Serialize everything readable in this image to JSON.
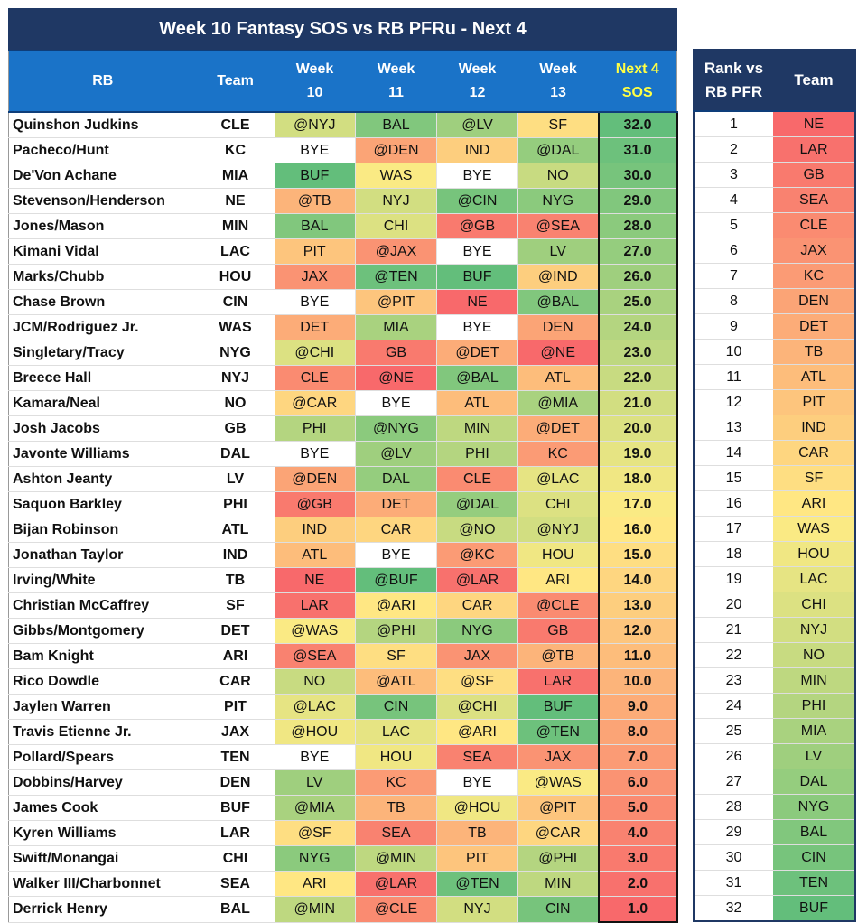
{
  "title": "Week 10 Fantasy SOS vs RB PFRu - Next 4",
  "headers": {
    "rb": "RB",
    "team": "Team",
    "weeks": [
      {
        "l1": "Week",
        "l2": "10"
      },
      {
        "l1": "Week",
        "l2": "11"
      },
      {
        "l1": "Week",
        "l2": "12"
      },
      {
        "l1": "Week",
        "l2": "13"
      }
    ],
    "sos": {
      "l1": "Next 4",
      "l2": "SOS"
    }
  },
  "side_headers": {
    "rank_l1": "Rank vs",
    "rank_l2": "RB PFR",
    "team": "Team"
  },
  "colors": {
    "title_bg": "#1f3864",
    "header_bg": "#1a73c8",
    "side_header_bg": "#1f3864",
    "sos_header_text": "#ffff44",
    "scale_bad": "#f8696b",
    "scale_mid": "#ffeb84",
    "scale_good": "#63be7b",
    "bye": "#ffffff"
  },
  "rows": [
    {
      "rb": "Quinshon Judkins",
      "team": "CLE",
      "opp": [
        "@NYJ",
        "BAL",
        "@LV",
        "SF"
      ],
      "sos": "32.0"
    },
    {
      "rb": "Pacheco/Hunt",
      "team": "KC",
      "opp": [
        "BYE",
        "@DEN",
        "IND",
        "@DAL"
      ],
      "sos": "31.0"
    },
    {
      "rb": "De'Von Achane",
      "team": "MIA",
      "opp": [
        "BUF",
        "WAS",
        "BYE",
        "NO"
      ],
      "sos": "30.0"
    },
    {
      "rb": "Stevenson/Henderson",
      "team": "NE",
      "opp": [
        "@TB",
        "NYJ",
        "@CIN",
        "NYG"
      ],
      "sos": "29.0"
    },
    {
      "rb": "Jones/Mason",
      "team": "MIN",
      "opp": [
        "BAL",
        "CHI",
        "@GB",
        "@SEA"
      ],
      "sos": "28.0"
    },
    {
      "rb": "Kimani Vidal",
      "team": "LAC",
      "opp": [
        "PIT",
        "@JAX",
        "BYE",
        "LV"
      ],
      "sos": "27.0"
    },
    {
      "rb": "Marks/Chubb",
      "team": "HOU",
      "opp": [
        "JAX",
        "@TEN",
        "BUF",
        "@IND"
      ],
      "sos": "26.0"
    },
    {
      "rb": "Chase Brown",
      "team": "CIN",
      "opp": [
        "BYE",
        "@PIT",
        "NE",
        "@BAL"
      ],
      "sos": "25.0"
    },
    {
      "rb": "JCM/Rodriguez Jr.",
      "team": "WAS",
      "opp": [
        "DET",
        "MIA",
        "BYE",
        "DEN"
      ],
      "sos": "24.0"
    },
    {
      "rb": "Singletary/Tracy",
      "team": "NYG",
      "opp": [
        "@CHI",
        "GB",
        "@DET",
        "@NE"
      ],
      "sos": "23.0"
    },
    {
      "rb": "Breece Hall",
      "team": "NYJ",
      "opp": [
        "CLE",
        "@NE",
        "@BAL",
        "ATL"
      ],
      "sos": "22.0"
    },
    {
      "rb": "Kamara/Neal",
      "team": "NO",
      "opp": [
        "@CAR",
        "BYE",
        "ATL",
        "@MIA"
      ],
      "sos": "21.0"
    },
    {
      "rb": "Josh Jacobs",
      "team": "GB",
      "opp": [
        "PHI",
        "@NYG",
        "MIN",
        "@DET"
      ],
      "sos": "20.0"
    },
    {
      "rb": "Javonte Williams",
      "team": "DAL",
      "opp": [
        "BYE",
        "@LV",
        "PHI",
        "KC"
      ],
      "sos": "19.0"
    },
    {
      "rb": "Ashton Jeanty",
      "team": "LV",
      "opp": [
        "@DEN",
        "DAL",
        "CLE",
        "@LAC"
      ],
      "sos": "18.0"
    },
    {
      "rb": "Saquon Barkley",
      "team": "PHI",
      "opp": [
        "@GB",
        "DET",
        "@DAL",
        "CHI"
      ],
      "sos": "17.0"
    },
    {
      "rb": "Bijan Robinson",
      "team": "ATL",
      "opp": [
        "IND",
        "CAR",
        "@NO",
        "@NYJ"
      ],
      "sos": "16.0"
    },
    {
      "rb": "Jonathan Taylor",
      "team": "IND",
      "opp": [
        "ATL",
        "BYE",
        "@KC",
        "HOU"
      ],
      "sos": "15.0"
    },
    {
      "rb": "Irving/White",
      "team": "TB",
      "opp": [
        "NE",
        "@BUF",
        "@LAR",
        "ARI"
      ],
      "sos": "14.0"
    },
    {
      "rb": "Christian McCaffrey",
      "team": "SF",
      "opp": [
        "LAR",
        "@ARI",
        "CAR",
        "@CLE"
      ],
      "sos": "13.0"
    },
    {
      "rb": "Gibbs/Montgomery",
      "team": "DET",
      "opp": [
        "@WAS",
        "@PHI",
        "NYG",
        "GB"
      ],
      "sos": "12.0"
    },
    {
      "rb": "Bam Knight",
      "team": "ARI",
      "opp": [
        "@SEA",
        "SF",
        "JAX",
        "@TB"
      ],
      "sos": "11.0"
    },
    {
      "rb": "Rico Dowdle",
      "team": "CAR",
      "opp": [
        "NO",
        "@ATL",
        "@SF",
        "LAR"
      ],
      "sos": "10.0"
    },
    {
      "rb": "Jaylen Warren",
      "team": "PIT",
      "opp": [
        "@LAC",
        "CIN",
        "@CHI",
        "BUF"
      ],
      "sos": "9.0"
    },
    {
      "rb": "Travis Etienne Jr.",
      "team": "JAX",
      "opp": [
        "@HOU",
        "LAC",
        "@ARI",
        "@TEN"
      ],
      "sos": "8.0"
    },
    {
      "rb": "Pollard/Spears",
      "team": "TEN",
      "opp": [
        "BYE",
        "HOU",
        "SEA",
        "JAX"
      ],
      "sos": "7.0"
    },
    {
      "rb": "Dobbins/Harvey",
      "team": "DEN",
      "opp": [
        "LV",
        "KC",
        "BYE",
        "@WAS"
      ],
      "sos": "6.0"
    },
    {
      "rb": "James Cook",
      "team": "BUF",
      "opp": [
        "@MIA",
        "TB",
        "@HOU",
        "@PIT"
      ],
      "sos": "5.0"
    },
    {
      "rb": "Kyren Williams",
      "team": "LAR",
      "opp": [
        "@SF",
        "SEA",
        "TB",
        "@CAR"
      ],
      "sos": "4.0"
    },
    {
      "rb": "Swift/Monangai",
      "team": "CHI",
      "opp": [
        "NYG",
        "@MIN",
        "PIT",
        "@PHI"
      ],
      "sos": "3.0"
    },
    {
      "rb": "Walker III/Charbonnet",
      "team": "SEA",
      "opp": [
        "ARI",
        "@LAR",
        "@TEN",
        "MIN"
      ],
      "sos": "2.0"
    },
    {
      "rb": "Derrick Henry",
      "team": "BAL",
      "opp": [
        "@MIN",
        "@CLE",
        "NYJ",
        "CIN"
      ],
      "sos": "1.0"
    }
  ],
  "ranking": [
    {
      "rank": "1",
      "team": "NE"
    },
    {
      "rank": "2",
      "team": "LAR"
    },
    {
      "rank": "3",
      "team": "GB"
    },
    {
      "rank": "4",
      "team": "SEA"
    },
    {
      "rank": "5",
      "team": "CLE"
    },
    {
      "rank": "6",
      "team": "JAX"
    },
    {
      "rank": "7",
      "team": "KC"
    },
    {
      "rank": "8",
      "team": "DEN"
    },
    {
      "rank": "9",
      "team": "DET"
    },
    {
      "rank": "10",
      "team": "TB"
    },
    {
      "rank": "11",
      "team": "ATL"
    },
    {
      "rank": "12",
      "team": "PIT"
    },
    {
      "rank": "13",
      "team": "IND"
    },
    {
      "rank": "14",
      "team": "CAR"
    },
    {
      "rank": "15",
      "team": "SF"
    },
    {
      "rank": "16",
      "team": "ARI"
    },
    {
      "rank": "17",
      "team": "WAS"
    },
    {
      "rank": "18",
      "team": "HOU"
    },
    {
      "rank": "19",
      "team": "LAC"
    },
    {
      "rank": "20",
      "team": "CHI"
    },
    {
      "rank": "21",
      "team": "NYJ"
    },
    {
      "rank": "22",
      "team": "NO"
    },
    {
      "rank": "23",
      "team": "MIN"
    },
    {
      "rank": "24",
      "team": "PHI"
    },
    {
      "rank": "25",
      "team": "MIA"
    },
    {
      "rank": "26",
      "team": "LV"
    },
    {
      "rank": "27",
      "team": "DAL"
    },
    {
      "rank": "28",
      "team": "NYG"
    },
    {
      "rank": "29",
      "team": "BAL"
    },
    {
      "rank": "30",
      "team": "CIN"
    },
    {
      "rank": "31",
      "team": "TEN"
    },
    {
      "rank": "32",
      "team": "BUF"
    }
  ]
}
